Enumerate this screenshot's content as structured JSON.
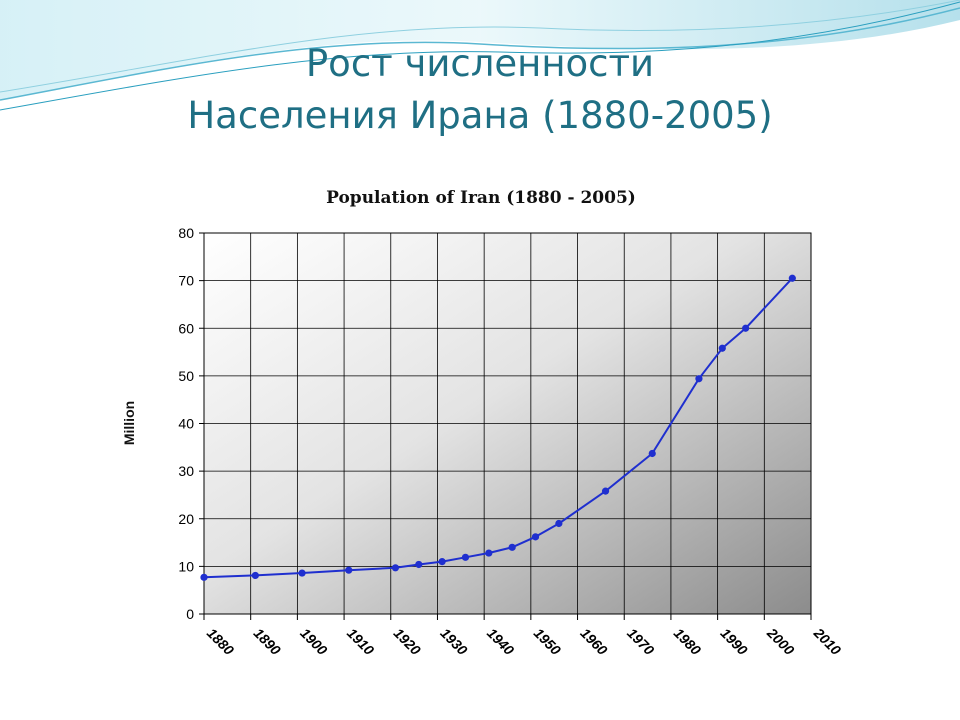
{
  "slide": {
    "title_line1": "Рост численности",
    "title_line2": "Населения Ирана (1880-2005)"
  },
  "colors": {
    "title": "#1f6f84",
    "series": "#1f2fcf",
    "wave_dark": "#2a9fbf",
    "wave_light": "#bfe6ef"
  },
  "chart_data": {
    "type": "line",
    "title": "Population of Iran (1880 - 2005)",
    "xlabel": "",
    "ylabel": "Million",
    "xlim": [
      1880,
      2010
    ],
    "ylim": [
      0,
      80
    ],
    "x_ticks": [
      1880,
      1890,
      1900,
      1910,
      1920,
      1930,
      1940,
      1950,
      1960,
      1970,
      1980,
      1990,
      2000,
      2010
    ],
    "y_ticks": [
      0,
      10,
      20,
      30,
      40,
      50,
      60,
      70,
      80
    ],
    "grid": true,
    "background": "gradient white to gray",
    "series": [
      {
        "x": [
          1880,
          1891,
          1901,
          1911,
          1921,
          1926,
          1931,
          1936,
          1941,
          1946,
          1951,
          1956,
          1966,
          1976,
          1986,
          1991,
          1996,
          2006
        ],
        "y": [
          7.7,
          8.1,
          8.6,
          9.2,
          9.7,
          10.4,
          11.0,
          11.9,
          12.8,
          14.0,
          16.2,
          19.0,
          25.8,
          33.7,
          49.4,
          55.8,
          60.0,
          70.5
        ]
      }
    ]
  }
}
